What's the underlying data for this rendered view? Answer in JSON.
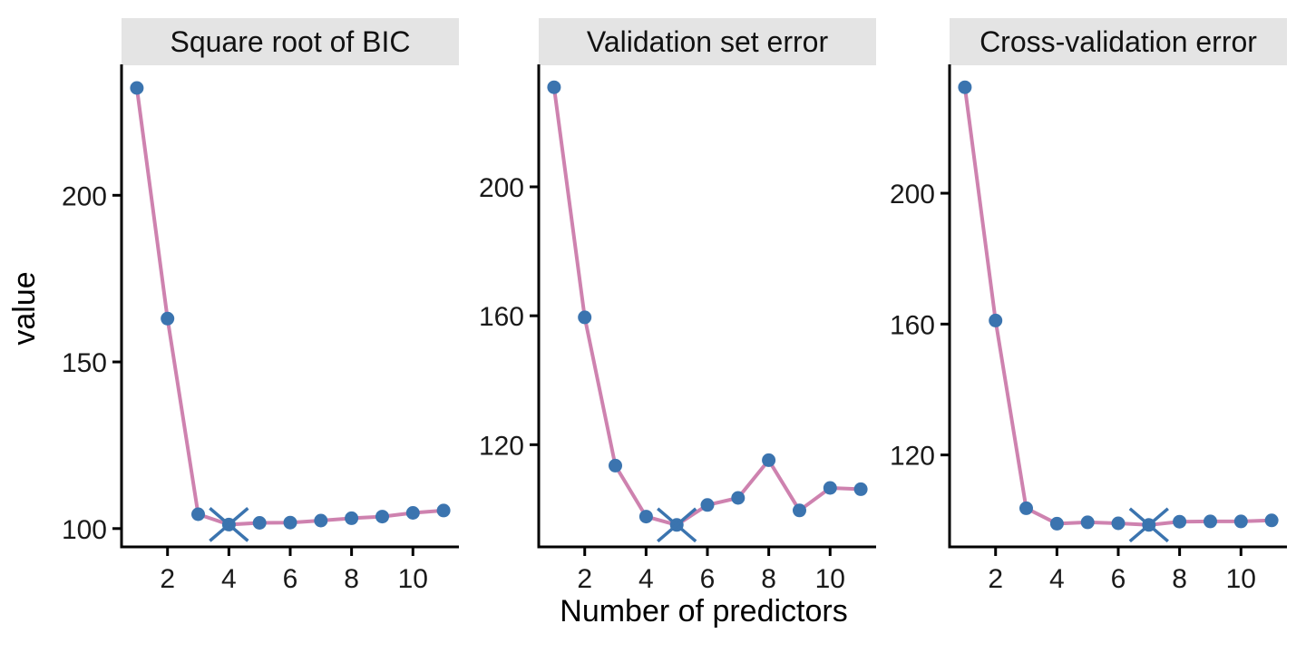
{
  "chart_data": {
    "type": "line",
    "title": "",
    "xlabel": "Number of predictors",
    "ylabel": "value",
    "x": [
      1,
      2,
      3,
      4,
      5,
      6,
      7,
      8,
      9,
      10,
      11
    ],
    "x_ticks": [
      2,
      4,
      6,
      8,
      10
    ],
    "xlim": [
      0.5,
      11.5
    ],
    "grid": false,
    "legend": false,
    "marker_note": "x-shaped marker indicates the minimum of each panel",
    "panels": [
      {
        "title": "Square root of BIC",
        "values": [
          232.2,
          163.0,
          104.3,
          101.2,
          101.7,
          101.8,
          102.4,
          103.1,
          103.6,
          104.7,
          105.4
        ],
        "min_marker_x": 4,
        "y_ticks": [
          100,
          150,
          200
        ],
        "ylim": [
          94.5,
          239.0
        ]
      },
      {
        "title": "Validation set error",
        "values": [
          230.9,
          159.5,
          113.5,
          97.7,
          95.1,
          101.3,
          103.5,
          115.2,
          99.6,
          106.6,
          106.2
        ],
        "min_marker_x": 5,
        "y_ticks": [
          120,
          160,
          200
        ],
        "ylim": [
          88.3,
          237.7
        ]
      },
      {
        "title": "Cross-validation error",
        "values": [
          232.4,
          161.1,
          103.7,
          99.0,
          99.4,
          99.1,
          98.6,
          99.6,
          99.7,
          99.7,
          100.0
        ],
        "min_marker_x": 7,
        "y_ticks": [
          120,
          160,
          200
        ],
        "ylim": [
          91.9,
          239.1
        ]
      }
    ],
    "colors": {
      "line": "#CE82AF",
      "point": "#3B74AF",
      "min_marker": "#3B74AF",
      "strip_bg": "#E4E4E4",
      "axis": "#000000",
      "text": "#1A1A1A",
      "background": "#FFFFFF"
    }
  }
}
